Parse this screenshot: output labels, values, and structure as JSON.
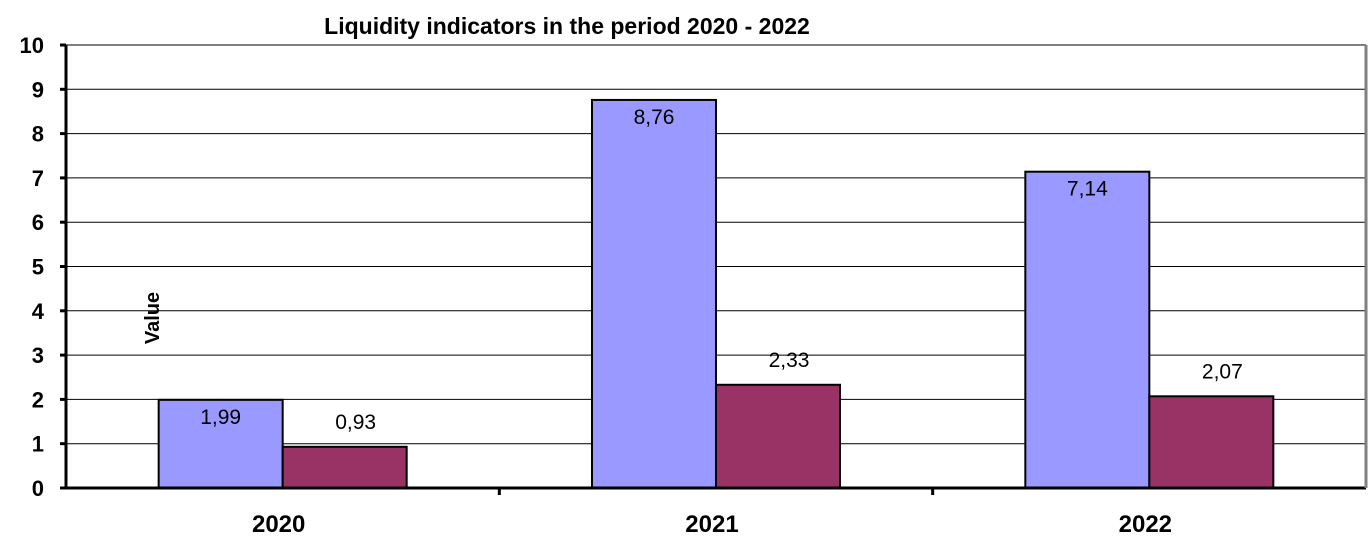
{
  "chart_data": {
    "type": "bar",
    "title": "Liquidity indicators in the period 2020 - 2022",
    "xlabel": "",
    "ylabel": "Value",
    "ylim": [
      0,
      10
    ],
    "yticks": [
      "0",
      "1",
      "2",
      "3",
      "4",
      "5",
      "6",
      "7",
      "8",
      "9",
      "10"
    ],
    "categories": [
      "2020",
      "2021",
      "2022"
    ],
    "series": [
      {
        "values": [
          1.99,
          8.76,
          7.14
        ],
        "labels": [
          "1,99",
          "8,76",
          "7,14"
        ],
        "color": "#9999ff"
      },
      {
        "values": [
          0.93,
          2.33,
          2.07
        ],
        "labels": [
          "0,93",
          "2,33",
          "2,07"
        ],
        "color": "#993366"
      }
    ],
    "grid": true,
    "legend": "none"
  }
}
